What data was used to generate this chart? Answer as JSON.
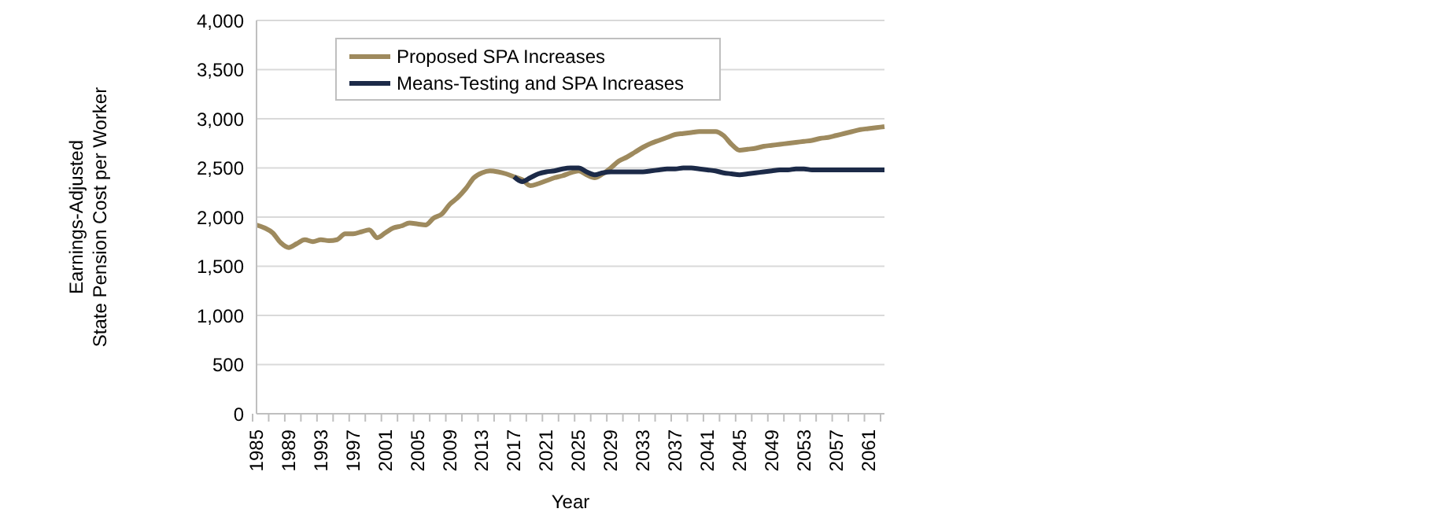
{
  "chart_data": {
    "type": "line",
    "xlabel": "Year",
    "ylabel": "Earnings-Adjusted\nState Pension Cost per Worker",
    "categories": [
      "1985",
      null,
      null,
      null,
      "1989",
      null,
      null,
      null,
      "1993",
      null,
      null,
      null,
      "1997",
      null,
      null,
      null,
      "2001",
      null,
      null,
      null,
      "2005",
      null,
      null,
      null,
      "2009",
      null,
      null,
      null,
      "2013",
      null,
      null,
      null,
      "2017",
      null,
      null,
      null,
      "2021",
      null,
      null,
      null,
      "2025",
      null,
      null,
      null,
      "2029",
      null,
      null,
      null,
      "2033",
      null,
      null,
      null,
      "2037",
      null,
      null,
      null,
      "2041",
      null,
      null,
      null,
      "2045",
      null,
      null,
      null,
      "2049",
      null,
      null,
      null,
      "2053",
      null,
      null,
      null,
      "2057",
      null,
      null,
      null,
      "2061",
      null,
      null
    ],
    "series": [
      {
        "name": "Proposed SPA Increases",
        "color": "#9e8a5e",
        "values": [
          1920,
          1890,
          1840,
          1740,
          1690,
          1730,
          1770,
          1750,
          1770,
          1760,
          1770,
          1830,
          1830,
          1850,
          1870,
          1790,
          1840,
          1890,
          1910,
          1940,
          1930,
          1920,
          1990,
          2030,
          2130,
          2200,
          2290,
          2400,
          2450,
          2470,
          2460,
          2440,
          2410,
          2380,
          2320,
          2340,
          2370,
          2400,
          2420,
          2450,
          2470,
          2430,
          2400,
          2440,
          2500,
          2570,
          2610,
          2660,
          2710,
          2750,
          2780,
          2810,
          2840,
          2850,
          2860,
          2870,
          2870,
          2870,
          2830,
          2740,
          2680,
          2690,
          2700,
          2720,
          2730,
          2740,
          2750,
          2760,
          2770,
          2780,
          2800,
          2810,
          2830,
          2850,
          2870,
          2890,
          2900,
          2910,
          2920
        ]
      },
      {
        "name": "Means-Testing and SPA Increases",
        "color": "#1c2a48",
        "values": [
          null,
          null,
          null,
          null,
          null,
          null,
          null,
          null,
          null,
          null,
          null,
          null,
          null,
          null,
          null,
          null,
          null,
          null,
          null,
          null,
          null,
          null,
          null,
          null,
          null,
          null,
          null,
          null,
          null,
          null,
          null,
          null,
          2410,
          2360,
          2400,
          2440,
          2460,
          2470,
          2490,
          2500,
          2500,
          2460,
          2430,
          2450,
          2460,
          2460,
          2460,
          2460,
          2460,
          2470,
          2480,
          2490,
          2490,
          2500,
          2500,
          2490,
          2480,
          2470,
          2450,
          2440,
          2430,
          2440,
          2450,
          2460,
          2470,
          2480,
          2480,
          2490,
          2490,
          2480,
          2480,
          2480,
          2480,
          2480,
          2480,
          2480,
          2480,
          2480,
          2480
        ]
      }
    ],
    "ylim": [
      0,
      4000
    ],
    "yticks": [
      {
        "value": 0,
        "label": "0"
      },
      {
        "value": 500,
        "label": "500"
      },
      {
        "value": 1000,
        "label": "1,000"
      },
      {
        "value": 1500,
        "label": "1,500"
      },
      {
        "value": 2000,
        "label": "2,000"
      },
      {
        "value": 2500,
        "label": "2,500"
      },
      {
        "value": 3000,
        "label": "3,000"
      },
      {
        "value": 3500,
        "label": "3,500"
      },
      {
        "value": 4000,
        "label": "4,000"
      }
    ],
    "grid": "y",
    "legend": "top left",
    "marker": "none",
    "line_style": "solid"
  }
}
